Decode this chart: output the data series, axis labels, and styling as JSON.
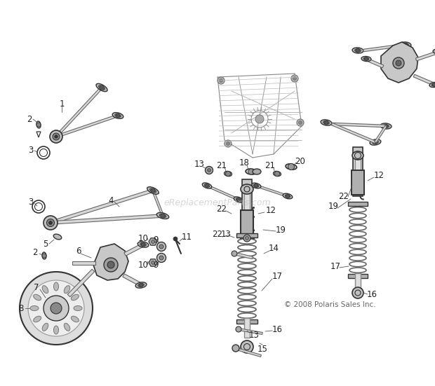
{
  "bg_color": "#ffffff",
  "fig_width": 6.2,
  "fig_height": 5.51,
  "dpi": 100,
  "line_color": "#555555",
  "dark_color": "#333333",
  "light_fill": "#cccccc",
  "mid_fill": "#aaaaaa",
  "copyright": "© 2008 Polaris Sales Inc.",
  "watermark": "eReplacementParts.com"
}
